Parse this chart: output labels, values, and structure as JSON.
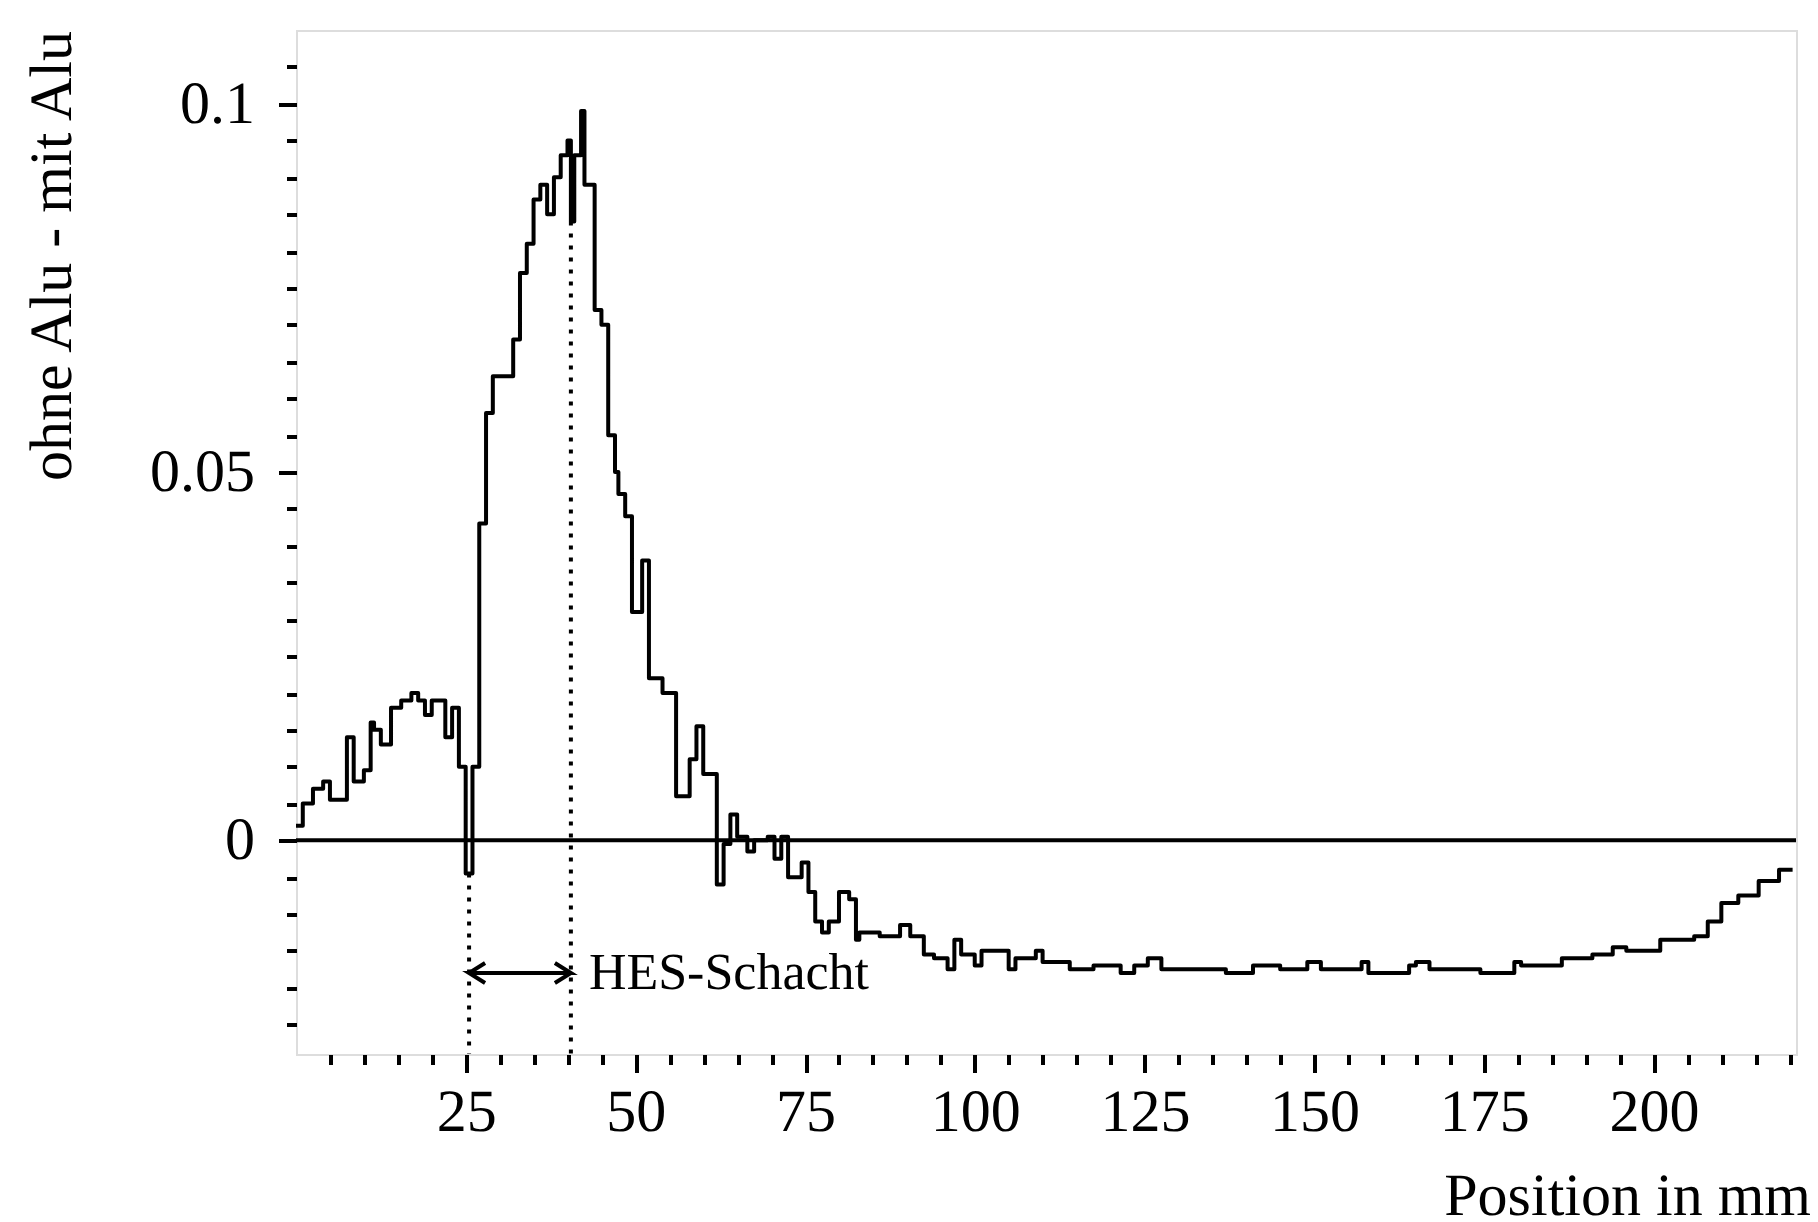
{
  "chart_data": {
    "type": "histogram",
    "xlabel": "Position in mm",
    "ylabel": "ohne Alu - mit Alu",
    "color": "#000000",
    "bins": [
      0,
      1,
      2.5,
      4,
      5,
      7.5,
      8.5,
      10,
      11,
      11.5,
      12.5,
      14,
      15.5,
      17,
      18,
      19,
      20,
      22,
      23,
      24,
      25,
      26,
      27,
      28,
      29,
      32,
      33,
      34,
      35,
      36,
      37,
      38,
      39,
      40,
      40.5,
      41,
      42,
      42.5,
      44,
      45,
      46,
      47,
      47.5,
      48.5,
      49.5,
      51,
      52,
      54,
      56,
      58,
      59,
      60,
      62,
      63,
      64,
      65,
      66.5,
      67.5,
      69.5,
      70.5,
      71.5,
      72.5,
      74.5,
      75.5,
      76.5,
      77.5,
      78.5,
      80,
      81.5,
      82.5,
      83,
      86,
      89,
      90.5,
      92.5,
      94,
      96,
      97,
      98,
      100,
      101,
      105,
      106,
      109,
      110,
      114,
      117.5,
      121.5,
      123.5,
      125.5,
      127.5,
      137,
      141,
      145,
      149,
      151,
      157,
      158,
      164,
      165,
      167,
      174.5,
      179.5,
      180.5,
      186.5,
      191,
      194,
      196,
      201,
      206,
      208,
      210,
      212.5,
      215.5,
      218.5,
      220.5
    ],
    "values": [
      0.002,
      0.005,
      0.007,
      0.008,
      0.0055,
      0.014,
      0.008,
      0.0095,
      0.016,
      0.015,
      0.013,
      0.018,
      0.019,
      0.02,
      0.019,
      0.017,
      0.019,
      0.014,
      0.018,
      0.01,
      -0.0045,
      0.01,
      0.043,
      0.058,
      0.063,
      0.068,
      0.077,
      0.081,
      0.087,
      0.089,
      0.085,
      0.09,
      0.093,
      0.095,
      0.084,
      0.093,
      0.099,
      0.089,
      0.072,
      0.07,
      0.055,
      0.05,
      0.047,
      0.044,
      0.031,
      0.038,
      0.022,
      0.02,
      0.006,
      0.011,
      0.0155,
      0.009,
      -0.006,
      -0.0005,
      0.0035,
      0.0005,
      -0.0015,
      0,
      0.0005,
      -0.0025,
      0.0005,
      -0.005,
      -0.003,
      -0.007,
      -0.011,
      -0.0125,
      -0.011,
      -0.007,
      -0.008,
      -0.0135,
      -0.0125,
      -0.013,
      -0.0115,
      -0.013,
      -0.0155,
      -0.016,
      -0.0175,
      -0.0135,
      -0.0155,
      -0.017,
      -0.015,
      -0.0175,
      -0.016,
      -0.015,
      -0.0165,
      -0.0175,
      -0.017,
      -0.018,
      -0.017,
      -0.016,
      -0.0175,
      -0.018,
      -0.017,
      -0.0175,
      -0.0165,
      -0.0175,
      -0.0165,
      -0.018,
      -0.017,
      -0.0165,
      -0.0175,
      -0.018,
      -0.0165,
      -0.017,
      -0.016,
      -0.0155,
      -0.0145,
      -0.015,
      -0.0135,
      -0.013,
      -0.011,
      -0.0085,
      -0.0075,
      -0.0055,
      -0.004
    ],
    "xlim": [
      0,
      221
    ],
    "ylim": [
      -0.029,
      0.11
    ],
    "xticks": [
      {
        "value": 5,
        "label": null
      },
      {
        "value": 10,
        "label": null
      },
      {
        "value": 15,
        "label": null
      },
      {
        "value": 20,
        "label": null
      },
      25,
      {
        "value": 30,
        "label": null
      },
      {
        "value": 35,
        "label": null
      },
      {
        "value": 40,
        "label": null
      },
      {
        "value": 45,
        "label": null
      },
      50,
      {
        "value": 55,
        "label": null
      },
      {
        "value": 60,
        "label": null
      },
      {
        "value": 65,
        "label": null
      },
      {
        "value": 70,
        "label": null
      },
      75,
      {
        "value": 80,
        "label": null
      },
      {
        "value": 85,
        "label": null
      },
      {
        "value": 90,
        "label": null
      },
      {
        "value": 95,
        "label": null
      },
      100,
      {
        "value": 105,
        "label": null
      },
      {
        "value": 110,
        "label": null
      },
      {
        "value": 115,
        "label": null
      },
      {
        "value": 120,
        "label": null
      },
      125,
      {
        "value": 130,
        "label": null
      },
      {
        "value": 135,
        "label": null
      },
      {
        "value": 140,
        "label": null
      },
      {
        "value": 145,
        "label": null
      },
      150,
      {
        "value": 155,
        "label": null
      },
      {
        "value": 160,
        "label": null
      },
      {
        "value": 165,
        "label": null
      },
      {
        "value": 170,
        "label": null
      },
      175,
      {
        "value": 180,
        "label": null
      },
      {
        "value": 185,
        "label": null
      },
      {
        "value": 190,
        "label": null
      },
      {
        "value": 195,
        "label": null
      },
      200,
      {
        "value": 205,
        "label": null
      },
      {
        "value": 210,
        "label": null
      },
      {
        "value": 215,
        "label": null
      },
      {
        "value": 220,
        "label": null
      }
    ],
    "yticks": [
      {
        "value": -0.025,
        "label": null
      },
      {
        "value": -0.02,
        "label": null
      },
      {
        "value": -0.015,
        "label": null
      },
      {
        "value": -0.01,
        "label": null
      },
      {
        "value": -0.005,
        "label": null
      },
      0,
      {
        "value": 0.005,
        "label": null
      },
      {
        "value": 0.01,
        "label": null
      },
      {
        "value": 0.015,
        "label": null
      },
      {
        "value": 0.02,
        "label": null
      },
      {
        "value": 0.025,
        "label": null
      },
      {
        "value": 0.03,
        "label": null
      },
      {
        "value": 0.035,
        "label": null
      },
      {
        "value": 0.04,
        "label": null
      },
      {
        "value": 0.045,
        "label": null
      },
      0.05,
      {
        "value": 0.055,
        "label": null
      },
      {
        "value": 0.06,
        "label": null
      },
      {
        "value": 0.065,
        "label": null
      },
      {
        "value": 0.07,
        "label": null
      },
      {
        "value": 0.075,
        "label": null
      },
      {
        "value": 0.08,
        "label": null
      },
      {
        "value": 0.085,
        "label": null
      },
      {
        "value": 0.09,
        "label": null
      },
      {
        "value": 0.095,
        "label": null
      },
      0.1,
      {
        "value": 0.105,
        "label": null
      }
    ],
    "ref_lines": [
      {
        "axis": "y",
        "value": 0,
        "color": "#000000",
        "line_style": "solid"
      },
      {
        "axis": "x",
        "value": 25.5,
        "color": "#000000",
        "line_style": "dotted"
      },
      {
        "axis": "x",
        "value": 40.5,
        "color": "#000000",
        "line_style": "dotted"
      }
    ],
    "annotations": [
      {
        "text": "HES-Schacht",
        "x": 40.5,
        "y": -0.018
      }
    ]
  }
}
